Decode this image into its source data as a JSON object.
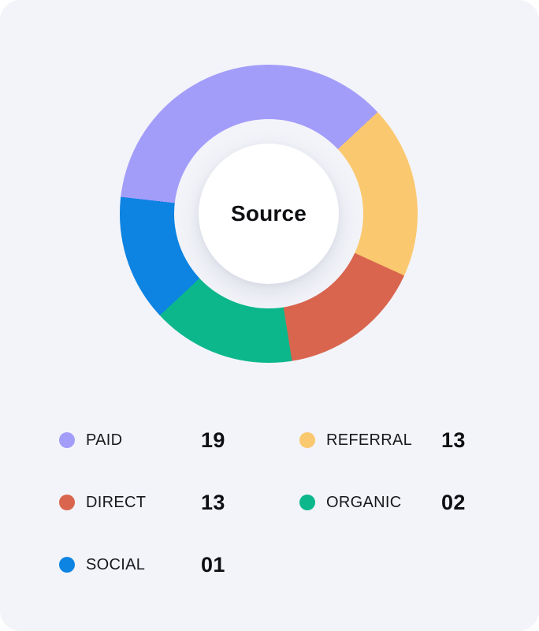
{
  "chart": {
    "center_label": "Source"
  },
  "chart_data": {
    "type": "donut",
    "title": "Source",
    "categories": [
      "PAID",
      "REFERRAL",
      "DIRECT",
      "ORGANIC",
      "SOCIAL"
    ],
    "values": [
      19,
      13,
      13,
      2,
      1
    ],
    "display_values": [
      "19",
      "13",
      "13",
      "02",
      "01"
    ],
    "colors": [
      "#A39DFA",
      "#FAC86E",
      "#D9654F",
      "#0CB78C",
      "#0D83E2"
    ],
    "legend_position": "bottom",
    "visual": {
      "start_angle_deg": 276.5,
      "sweeps_deg": [
        130.5,
        67.5,
        56.5,
        56,
        49.5
      ],
      "note": "segment sweep angles as rendered, clockwise from start angle (12 o'clock = 0deg)"
    }
  },
  "legend": {
    "items": [
      {
        "label": "PAID",
        "value": "19",
        "color": "#A39DFA"
      },
      {
        "label": "REFERRAL",
        "value": "13",
        "color": "#FAC86E"
      },
      {
        "label": "DIRECT",
        "value": "13",
        "color": "#D9654F"
      },
      {
        "label": "ORGANIC",
        "value": "02",
        "color": "#0CB78C"
      },
      {
        "label": "SOCIAL",
        "value": "01",
        "color": "#0D83E2"
      }
    ]
  },
  "colors": {
    "page_background": "#FFFFFF",
    "card_background": "#F3F4F9",
    "hole_background": "#FFFFFF",
    "text": "#0E0F12"
  }
}
